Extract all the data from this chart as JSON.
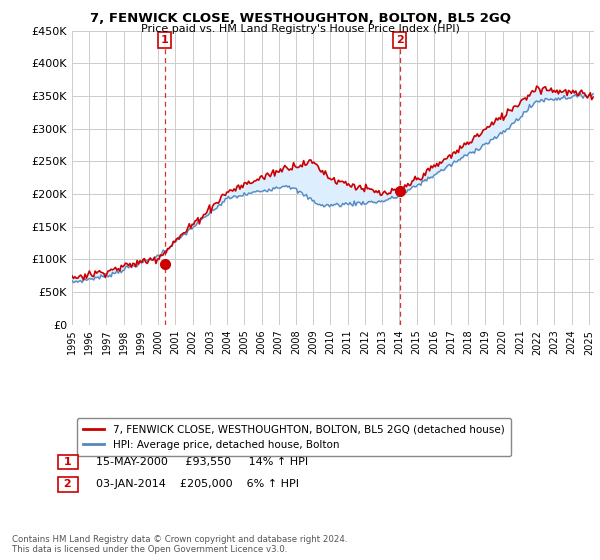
{
  "title": "7, FENWICK CLOSE, WESTHOUGHTON, BOLTON, BL5 2GQ",
  "subtitle": "Price paid vs. HM Land Registry's House Price Index (HPI)",
  "hpi_label": "HPI: Average price, detached house, Bolton",
  "property_label": "7, FENWICK CLOSE, WESTHOUGHTON, BOLTON, BL5 2GQ (detached house)",
  "footnote": "Contains HM Land Registry data © Crown copyright and database right 2024.\nThis data is licensed under the Open Government Licence v3.0.",
  "sale1_date": "15-MAY-2000",
  "sale1_price": 93550,
  "sale1_hpi": "14% ↑ HPI",
  "sale2_date": "03-JAN-2014",
  "sale2_price": 205000,
  "sale2_hpi": "6% ↑ HPI",
  "red_color": "#cc0000",
  "blue_color": "#5588bb",
  "fill_color": "#ddeeff",
  "bg_color": "#ffffff",
  "grid_color": "#cccccc",
  "ylim": [
    0,
    450000
  ],
  "yticks": [
    0,
    50000,
    100000,
    150000,
    200000,
    250000,
    300000,
    350000,
    400000,
    450000
  ],
  "xlim_start": 1995,
  "xlim_end": 2025.3,
  "sale1_x": 2000.38,
  "sale1_y": 93550,
  "sale2_x": 2014.02,
  "sale2_y": 205000
}
